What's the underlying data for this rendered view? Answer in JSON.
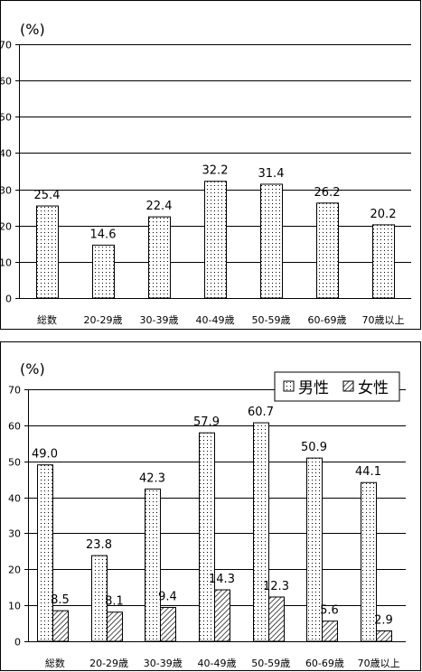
{
  "chart_data": [
    {
      "type": "bar",
      "title": "",
      "ylabel": "(%)",
      "xlabel": "",
      "ylim": [
        0,
        70
      ],
      "yticks": [
        0,
        10,
        20,
        30,
        40,
        50,
        60,
        70
      ],
      "grid": true,
      "categories": [
        "総数",
        "20-29歳",
        "30-39歳",
        "40-49歳",
        "50-59歳",
        "60-69歳",
        "70歳以上"
      ],
      "series": [
        {
          "values": [
            25.4,
            14.6,
            22.4,
            32.2,
            31.4,
            26.2,
            20.2
          ],
          "pattern": "dots"
        }
      ],
      "value_labels": [
        "25.4",
        "14.6",
        "22.4",
        "32.2",
        "31.4",
        "26.2",
        "20.2"
      ]
    },
    {
      "type": "bar",
      "title": "",
      "ylabel": "(%)",
      "xlabel": "",
      "ylim": [
        0,
        70
      ],
      "yticks": [
        0,
        10,
        20,
        30,
        40,
        50,
        60,
        70
      ],
      "grid": true,
      "legend": "top-right",
      "categories": [
        "総数",
        "20-29歳",
        "30-39歳",
        "40-49歳",
        "50-59歳",
        "60-69歳",
        "70歳以上"
      ],
      "series": [
        {
          "name": "男性",
          "values": [
            49.0,
            23.8,
            42.3,
            57.9,
            60.7,
            50.9,
            44.1
          ],
          "pattern": "dots",
          "value_labels": [
            "49.0",
            "23.8",
            "42.3",
            "57.9",
            "60.7",
            "50.9",
            "44.1"
          ]
        },
        {
          "name": "女性",
          "values": [
            8.5,
            8.1,
            9.4,
            14.3,
            12.3,
            5.6,
            2.9
          ],
          "pattern": "hatch",
          "value_labels": [
            "8.5",
            "8.1",
            "9.4",
            "14.3",
            "12.3",
            "5.6",
            "2.9"
          ]
        }
      ]
    }
  ]
}
